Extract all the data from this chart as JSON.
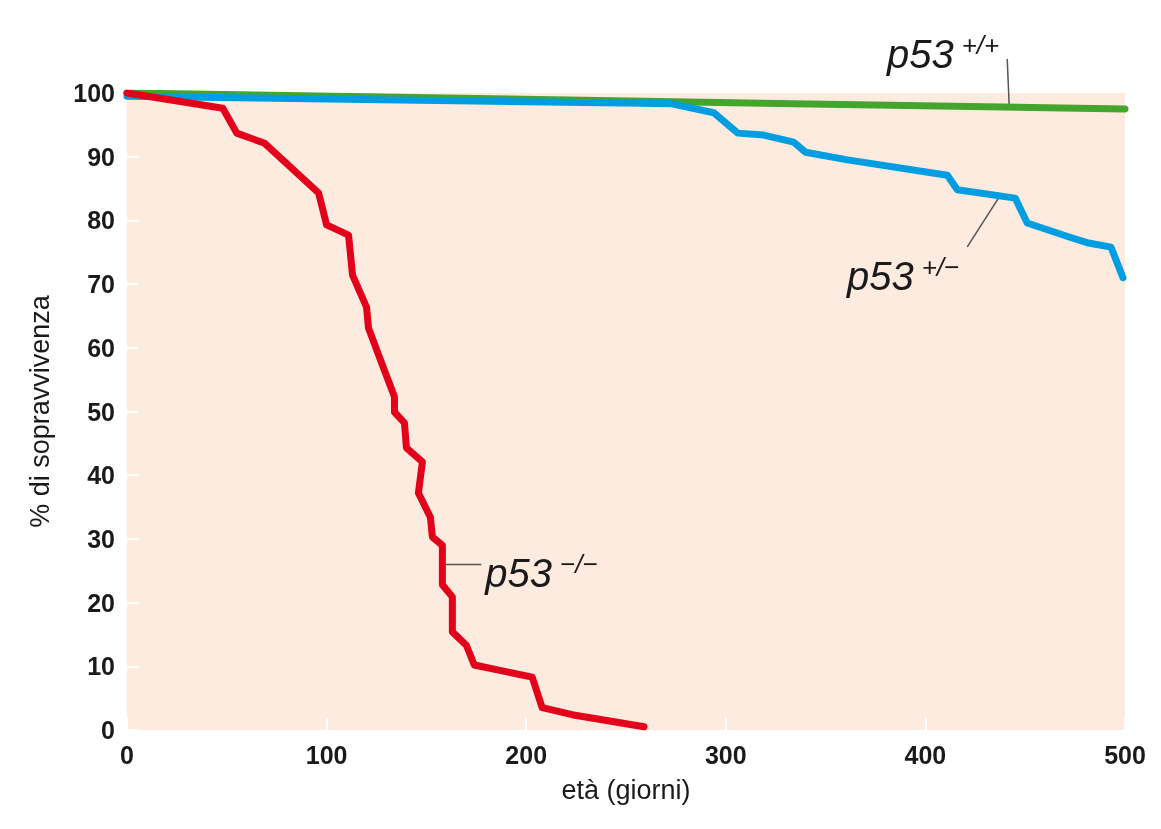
{
  "chart_data": {
    "type": "line",
    "xlabel": "età (giorni)",
    "ylabel": "% di sopravvivenza",
    "xlim": [
      0,
      500
    ],
    "xticks": [
      0,
      100,
      200,
      300,
      400,
      500
    ],
    "ylim": [
      0,
      100
    ],
    "yticks": [
      0,
      10,
      20,
      30,
      40,
      50,
      60,
      70,
      80,
      90,
      100
    ],
    "grid": false,
    "marker": "none",
    "line_style": "solid",
    "series": [
      {
        "color": "#43a52e",
        "x": [
          0,
          500
        ],
        "values": [
          100,
          97.5
        ]
      },
      {
        "color": "#009ee0",
        "x": [
          0,
          257,
          273,
          294,
          306,
          319,
          334,
          340,
          361,
          411,
          416,
          445,
          451,
          472,
          481,
          493,
          499
        ],
        "values": [
          99.5,
          98.4,
          98.3,
          96.9,
          93.7,
          93.4,
          92.3,
          90.7,
          89.5,
          87.1,
          84.8,
          83.5,
          79.6,
          77.4,
          76.5,
          75.8,
          71
        ]
      },
      {
        "color": "#e2001a",
        "x": [
          0,
          48,
          55,
          69,
          96,
          100,
          111,
          113,
          120,
          121,
          127,
          134,
          134,
          139,
          140,
          148,
          146,
          152,
          153,
          158,
          158,
          163,
          163,
          170,
          174,
          203,
          208,
          223,
          259
        ],
        "values": [
          100,
          97.6,
          93.7,
          92.1,
          84.3,
          79.3,
          77.7,
          71.4,
          66.4,
          63.1,
          58.1,
          52.3,
          49.9,
          48.2,
          44.3,
          42.1,
          37.2,
          33.4,
          30.3,
          29,
          22.8,
          20.9,
          15.4,
          13.3,
          10.2,
          8.3,
          3.5,
          2.4,
          0.5
        ]
      }
    ],
    "annotations": [
      {
        "text": "p53$^{+/+}$",
        "x": 442,
        "y": 97.8
      },
      {
        "text": "p53$^{+/−}$",
        "x": 437,
        "y": 83.7
      },
      {
        "text": "p53$^{−/−}$",
        "x": 157,
        "y": 26
      }
    ]
  }
}
